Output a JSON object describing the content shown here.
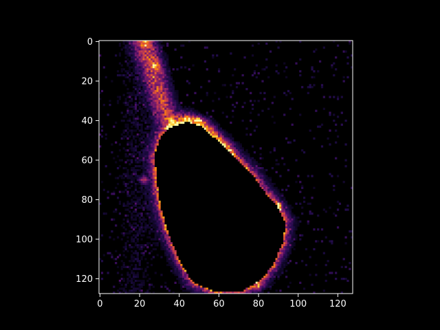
{
  "chart_data": {
    "type": "heatmap",
    "title": "",
    "xlabel": "",
    "ylabel": "",
    "colormap": "inferno",
    "grid": false,
    "image_shape": [
      128,
      128
    ],
    "xlim": [
      -0.5,
      127.5
    ],
    "ylim": [
      127.5,
      -0.5
    ],
    "x_ticks": [
      0,
      20,
      40,
      60,
      80,
      100,
      120
    ],
    "y_ticks": [
      0,
      20,
      40,
      60,
      80,
      100,
      120
    ],
    "x_tick_labels": [
      "0",
      "20",
      "40",
      "60",
      "80",
      "100",
      "120"
    ],
    "y_tick_labels": [
      "0",
      "20",
      "40",
      "60",
      "80",
      "100",
      "120"
    ],
    "features": {
      "dark_region_outline": [
        [
          36,
          44
        ],
        [
          45,
          41
        ],
        [
          53,
          44
        ],
        [
          58,
          49
        ],
        [
          66,
          56
        ],
        [
          76,
          66
        ],
        [
          84,
          77
        ],
        [
          90,
          84
        ],
        [
          94,
          92
        ],
        [
          93,
          102
        ],
        [
          88,
          113
        ],
        [
          82,
          121
        ],
        [
          72,
          127
        ],
        [
          58,
          127
        ],
        [
          47,
          122
        ],
        [
          41,
          112
        ],
        [
          35,
          98
        ],
        [
          31,
          84
        ],
        [
          29,
          70
        ],
        [
          28,
          58
        ],
        [
          31,
          49
        ]
      ],
      "bright_band_left": [
        [
          22,
          0
        ],
        [
          25,
          8
        ],
        [
          28,
          18
        ],
        [
          31,
          30
        ],
        [
          34,
          38
        ],
        [
          38,
          42
        ]
      ],
      "bright_band_right": [
        [
          45,
          40
        ],
        [
          52,
          43
        ],
        [
          57,
          48
        ],
        [
          64,
          55
        ]
      ],
      "hotspots": [
        [
          23,
          1
        ],
        [
          28,
          12
        ],
        [
          36,
          41
        ],
        [
          44,
          41
        ],
        [
          50,
          40
        ],
        [
          22,
          70
        ],
        [
          89,
          83
        ],
        [
          62,
          124
        ],
        [
          80,
          124
        ],
        [
          90,
          84
        ]
      ]
    },
    "palette": {
      "background": "#000000",
      "axes_edge": "#ffffff",
      "low": "#000004",
      "mid_low": "#420a68",
      "mid": "#932667",
      "mid_high": "#dd513a",
      "high": "#fca50a",
      "max": "#fcffa4"
    }
  }
}
